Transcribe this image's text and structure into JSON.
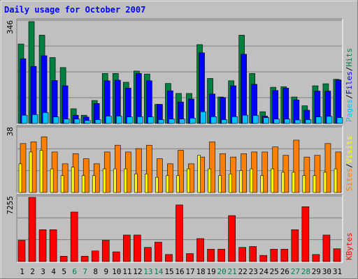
{
  "chart_data": {
    "type": "bar",
    "title": "Daily usage for October 2007",
    "categories": [
      "1",
      "2",
      "3",
      "4",
      "5",
      "6",
      "7",
      "8",
      "9",
      "10",
      "11",
      "12",
      "13",
      "14",
      "15",
      "16",
      "17",
      "18",
      "19",
      "20",
      "21",
      "22",
      "23",
      "24",
      "25",
      "26",
      "27",
      "28",
      "29",
      "30",
      "31"
    ],
    "weekend_days": [
      "6",
      "7",
      "13",
      "14",
      "20",
      "21",
      "27",
      "28"
    ],
    "panels": [
      {
        "name": "top",
        "ymax_label": "346",
        "ymax": 346,
        "legend": [
          {
            "text": "Pages",
            "color": "#00c0ff"
          },
          {
            "text": "Files",
            "color": "#0000ff"
          },
          {
            "text": "Hits",
            "color": "#008040"
          }
        ],
        "series": [
          {
            "name": "Hits",
            "color": "#008040",
            "values": [
              270,
              346,
              300,
              224,
              190,
              50,
              28,
              78,
              170,
              170,
              140,
              178,
              168,
              65,
              136,
              102,
              102,
              268,
              153,
              90,
              145,
              300,
              170,
              40,
              123,
              125,
              90,
              60,
              128,
              135,
              150
            ]
          },
          {
            "name": "Files",
            "color": "#0000ff",
            "values": [
              220,
              194,
              230,
              146,
              128,
              28,
              22,
              68,
              145,
              147,
              120,
              170,
              145,
              65,
              111,
              73,
              83,
              240,
              100,
              88,
              128,
              235,
              133,
              25,
              112,
              120,
              80,
              45,
              110,
              110,
              148
            ]
          },
          {
            "name": "Pages",
            "color": "#00c0ff",
            "values": [
              28,
              30,
              37,
              22,
              15,
              15,
              10,
              13,
              25,
              25,
              22,
              23,
              22,
              13,
              15,
              15,
              18,
              40,
              23,
              13,
              23,
              28,
              27,
              20,
              15,
              15,
              12,
              13,
              22,
              24,
              20
            ]
          }
        ]
      },
      {
        "name": "middle",
        "ymax_label": "38",
        "ymax": 38,
        "legend": [
          {
            "text": "Sites",
            "color": "#ff8000"
          },
          {
            "text": "/",
            "color": "#000000"
          },
          {
            "text": "Visits",
            "color": "#ffff00"
          }
        ],
        "series": [
          {
            "name": "Visits",
            "color": "#ffff00",
            "values": [
              17,
              24,
              25,
              14,
              10,
              15,
              10,
              10,
              14,
              14,
              14,
              11,
              11,
              9,
              10,
              10,
              14,
              22,
              14,
              10,
              11,
              13,
              14,
              10,
              14,
              12,
              12,
              10,
              10,
              12,
              14
            ]
          },
          {
            "name": "Sites",
            "color": "#ff8000",
            "values": [
              29,
              30,
              33,
              24,
              17,
              23,
              20,
              17,
              24,
              28,
              24,
              26,
              28,
              20,
              17,
              25,
              17,
              21,
              30,
              23,
              21,
              23,
              24,
              24,
              27,
              22,
              31,
              21,
              22,
              29,
              24
            ]
          }
        ]
      },
      {
        "name": "bottom",
        "ymax_label": "7255",
        "ymax": 7255,
        "legend": [
          {
            "text": "KBytes",
            "color": "#ff0000"
          }
        ],
        "series": [
          {
            "name": "KBytes",
            "color": "#ff0000",
            "values": [
              2400,
              7255,
              3600,
              3600,
              600,
              5600,
              600,
              1200,
              2400,
              1100,
              3000,
              3000,
              1600,
              2200,
              800,
              6400,
              900,
              2600,
              1400,
              1400,
              5200,
              1600,
              1700,
              700,
              1400,
              1400,
              3600,
              6200,
              800,
              3000,
              1450
            ]
          }
        ]
      }
    ]
  },
  "colors": {
    "background": "#c0c0c0",
    "plot_background": "#c0c0c0",
    "title": "#0000ff",
    "weekday_label": "#000000",
    "weekend_label": "#00805c"
  }
}
